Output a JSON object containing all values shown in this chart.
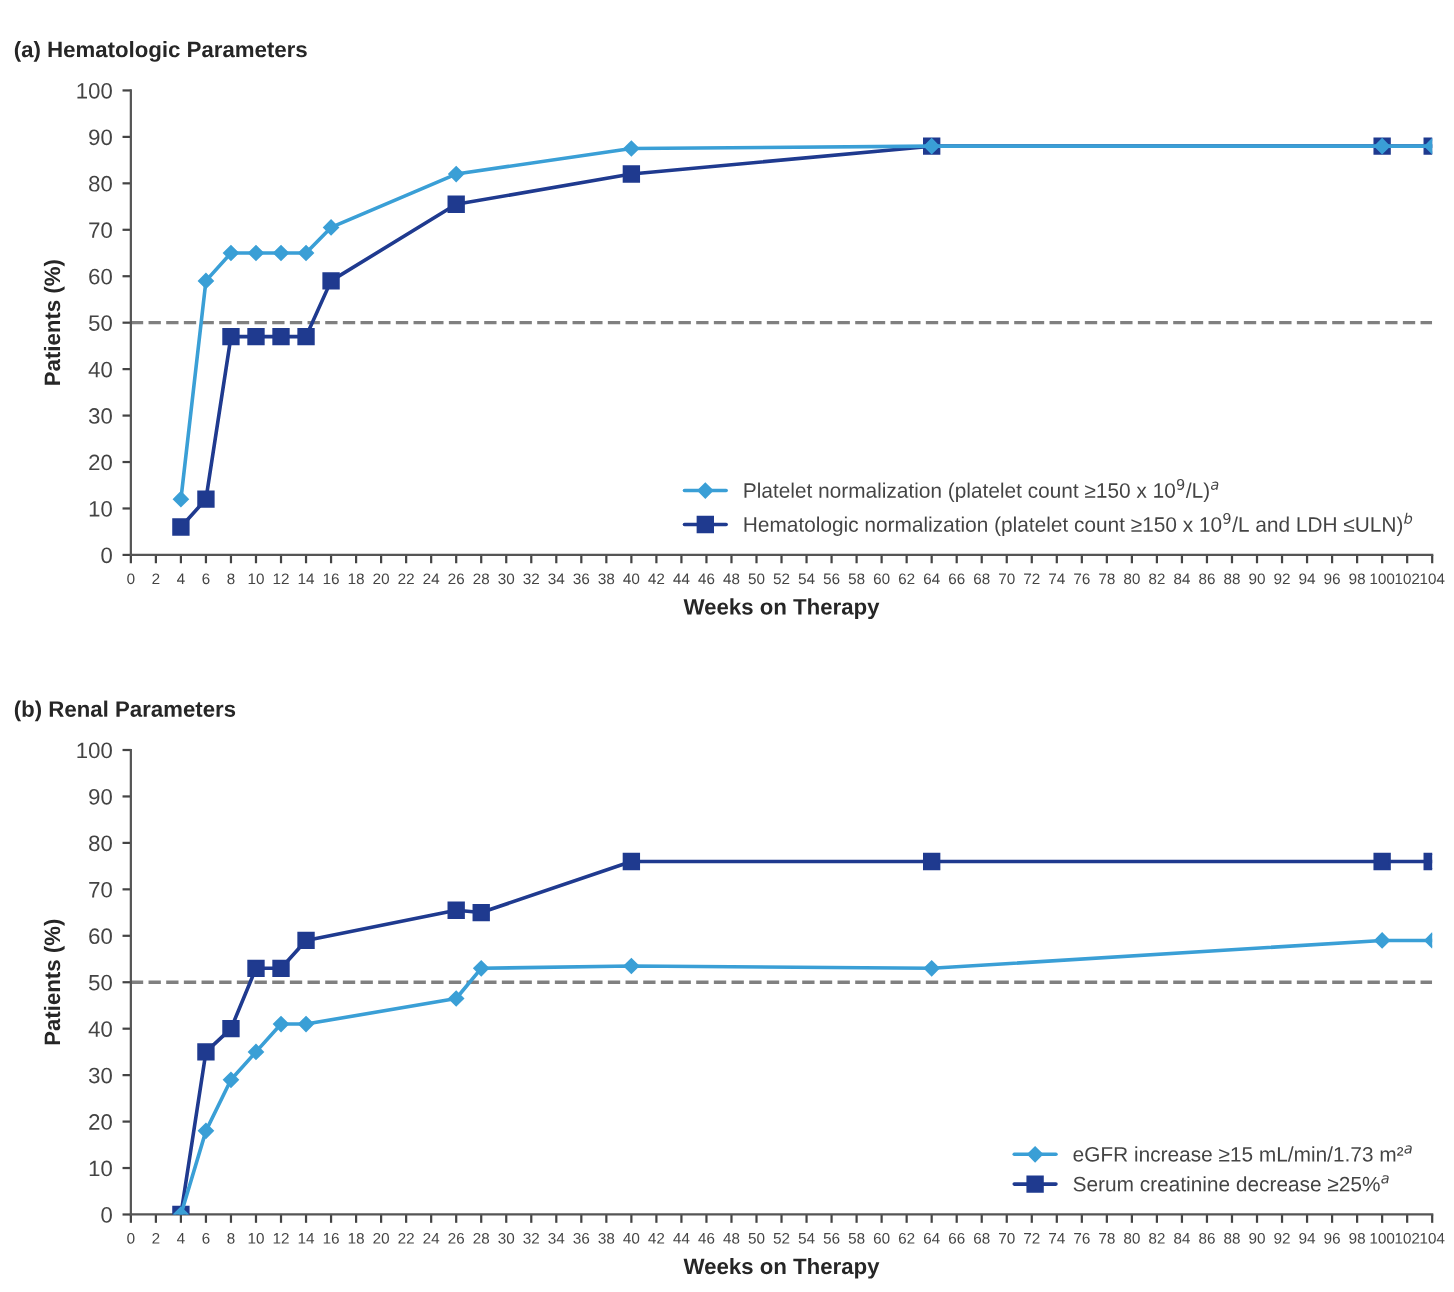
{
  "chart_data": [
    {
      "type": "line",
      "title": "(a) Hematologic Parameters",
      "xlabel": "Weeks on Therapy",
      "ylabel": "Patients (%)",
      "xlim": [
        0,
        104
      ],
      "xticks": [
        0,
        2,
        4,
        6,
        8,
        10,
        12,
        14,
        16,
        18,
        20,
        22,
        24,
        26,
        28,
        30,
        32,
        34,
        36,
        38,
        40,
        42,
        44,
        46,
        48,
        50,
        52,
        54,
        56,
        58,
        60,
        62,
        64,
        66,
        68,
        70,
        72,
        74,
        76,
        78,
        80,
        82,
        84,
        86,
        88,
        90,
        92,
        94,
        96,
        98,
        100,
        102,
        104
      ],
      "ylim": [
        0,
        100
      ],
      "yticks": [
        0,
        10,
        20,
        30,
        40,
        50,
        60,
        70,
        80,
        90,
        100
      ],
      "grid": false,
      "legend": "bottom right",
      "ref_lines": [
        {
          "axis": "y",
          "value": 50,
          "color": "#808080",
          "line_style": "dashed"
        }
      ],
      "series": [
        {
          "name": "Platelet normalization (platelet count ≥150 x 10$^{9}$/L)$^{a}$",
          "color": "#3a9fd6",
          "marker": "diamond",
          "x": [
            4,
            6,
            8,
            10,
            12,
            14,
            16,
            26,
            40,
            64,
            100,
            104
          ],
          "values": [
            12,
            59,
            65,
            65,
            65,
            65,
            70.5,
            82,
            87.5,
            88,
            88,
            88
          ]
        },
        {
          "name": "Hematologic normalization (platelet count ≥150 x 10$^{9}$/L and LDH ≤ULN)$^{b}$",
          "color": "#1f3a8f",
          "marker": "square",
          "x": [
            4,
            6,
            8,
            10,
            12,
            14,
            16,
            26,
            40,
            64,
            100,
            104
          ],
          "values": [
            6,
            12,
            47,
            47,
            47,
            47,
            59,
            75.5,
            82,
            88,
            88,
            88
          ]
        }
      ]
    },
    {
      "type": "line",
      "title": "(b) Renal Parameters",
      "xlabel": "Weeks on Therapy",
      "ylabel": "Patients (%)",
      "xlim": [
        0,
        104
      ],
      "xticks": [
        0,
        2,
        4,
        6,
        8,
        10,
        12,
        14,
        16,
        18,
        20,
        22,
        24,
        26,
        28,
        30,
        32,
        34,
        36,
        38,
        40,
        42,
        44,
        46,
        48,
        50,
        52,
        54,
        56,
        58,
        60,
        62,
        64,
        66,
        68,
        70,
        72,
        74,
        76,
        78,
        80,
        82,
        84,
        86,
        88,
        90,
        92,
        94,
        96,
        98,
        100,
        102,
        104
      ],
      "ylim": [
        0,
        100
      ],
      "yticks": [
        0,
        10,
        20,
        30,
        40,
        50,
        60,
        70,
        80,
        90,
        100
      ],
      "grid": false,
      "legend": "bottom right",
      "ref_lines": [
        {
          "axis": "y",
          "value": 50,
          "color": "#808080",
          "line_style": "dashed"
        }
      ],
      "series": [
        {
          "name": "eGFR increase ≥15 mL/min/1.73 m²$^{a}$",
          "color": "#3a9fd6",
          "marker": "diamond",
          "x": [
            4,
            6,
            8,
            10,
            12,
            14,
            26,
            28,
            40,
            64,
            100,
            104
          ],
          "values": [
            0,
            18,
            29,
            35,
            41,
            41,
            46.5,
            53,
            53.5,
            53,
            59,
            59
          ]
        },
        {
          "name": "Serum creatinine decrease ≥25%$^{a}$",
          "color": "#1f3a8f",
          "marker": "square",
          "x": [
            4,
            6,
            8,
            10,
            12,
            14,
            26,
            28,
            40,
            64,
            100,
            104
          ],
          "values": [
            0,
            35,
            40,
            53,
            53,
            59,
            65.5,
            65,
            76,
            76,
            76,
            76
          ]
        }
      ]
    }
  ]
}
